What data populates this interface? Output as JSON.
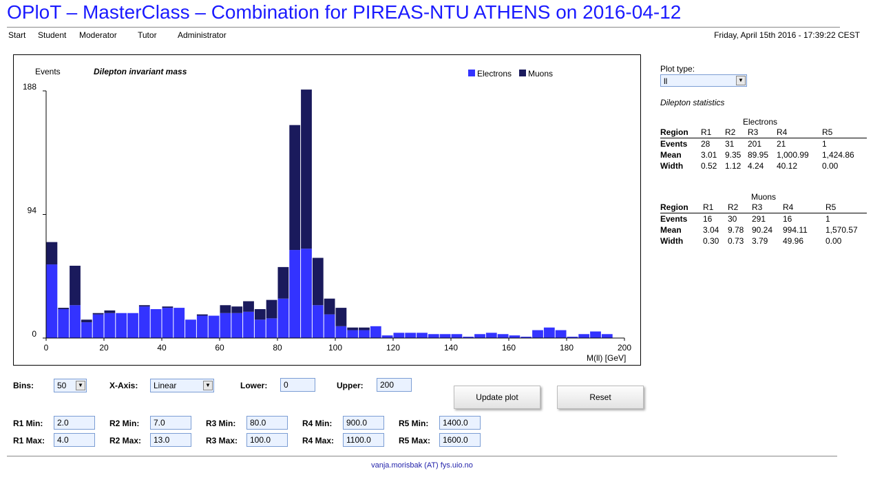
{
  "header": {
    "title": "OPloT – MasterClass – Combination for PIREAS-NTU ATHENS on 2016-04-12",
    "datetime": "Friday, April 15th 2016 - 17:39:22 CEST"
  },
  "nav": {
    "items": [
      "Start",
      "Student",
      "Moderator",
      "Tutor",
      "Administrator"
    ]
  },
  "plot": {
    "ylabel": "Events",
    "chart_title": "Dilepton invariant mass",
    "xlabel": "M(ll) [GeV]",
    "legend": [
      "Electrons",
      "Muons"
    ]
  },
  "chart_data": {
    "type": "bar",
    "stacked": true,
    "title": "Dilepton invariant mass",
    "xlabel": "M(ll) [GeV]",
    "ylabel": "Events",
    "xlim": [
      0,
      200
    ],
    "ylim": [
      0,
      188
    ],
    "xticks": [
      0,
      20,
      40,
      60,
      80,
      100,
      120,
      140,
      160,
      180,
      200
    ],
    "yticks": [
      0,
      94,
      188
    ],
    "bin_width": 4,
    "x": [
      2,
      6,
      10,
      14,
      18,
      22,
      26,
      30,
      34,
      38,
      42,
      46,
      50,
      54,
      58,
      62,
      66,
      70,
      74,
      78,
      82,
      86,
      90,
      94,
      98,
      102,
      106,
      110,
      114,
      118,
      122,
      126,
      130,
      134,
      138,
      142,
      146,
      150,
      154,
      158,
      162,
      166,
      170,
      174,
      178,
      182,
      186,
      190,
      194,
      198
    ],
    "series": [
      {
        "name": "Electrons",
        "color": "#3333ff",
        "values": [
          56,
          22,
          25,
          12,
          18,
          19,
          19,
          19,
          24,
          22,
          23,
          23,
          14,
          17,
          17,
          19,
          19,
          20,
          14,
          15,
          30,
          67,
          68,
          25,
          18,
          9,
          6,
          6,
          9,
          2,
          4,
          4,
          4,
          3,
          3,
          3,
          1,
          3,
          4,
          3,
          2,
          1,
          6,
          8,
          6,
          1,
          3,
          5,
          3,
          0
        ]
      },
      {
        "name": "Muons",
        "color": "#1a1a5c",
        "values": [
          17,
          1,
          30,
          2,
          1,
          2,
          0,
          0,
          1,
          0,
          1,
          0,
          0,
          1,
          0,
          6,
          5,
          8,
          8,
          14,
          24,
          95,
          121,
          36,
          12,
          14,
          2,
          2,
          0,
          0,
          0,
          0,
          0,
          0,
          0,
          0,
          0,
          0,
          0,
          0,
          0,
          0,
          0,
          0,
          0,
          0,
          0,
          0,
          0,
          0
        ]
      }
    ]
  },
  "side": {
    "plot_type_label": "Plot type:",
    "plot_type_value": "ll",
    "stats_title": "Dilepton statistics",
    "electrons": {
      "title": "Electrons",
      "headers": [
        "Region",
        "R1",
        "R2",
        "R3",
        "R4",
        "R5"
      ],
      "rows": [
        [
          "Events",
          "28",
          "31",
          "201",
          "21",
          "1"
        ],
        [
          "Mean",
          "3.01",
          "9.35",
          "89.95",
          "1,000.99",
          "1,424.86"
        ],
        [
          "Width",
          "0.52",
          "1.12",
          "4.24",
          "40.12",
          "0.00"
        ]
      ]
    },
    "muons": {
      "title": "Muons",
      "headers": [
        "Region",
        "R1",
        "R2",
        "R3",
        "R4",
        "R5"
      ],
      "rows": [
        [
          "Events",
          "16",
          "30",
          "291",
          "16",
          "1"
        ],
        [
          "Mean",
          "3.04",
          "9.78",
          "90.24",
          "994.11",
          "1,570.57"
        ],
        [
          "Width",
          "0.30",
          "0.73",
          "3.79",
          "49.96",
          "0.00"
        ]
      ]
    }
  },
  "controls": {
    "bins_label": "Bins:",
    "bins_value": "50",
    "xaxis_label": "X-Axis:",
    "xaxis_value": "Linear",
    "lower_label": "Lower:",
    "lower_value": "0",
    "upper_label": "Upper:",
    "upper_value": "200",
    "update_label": "Update plot",
    "reset_label": "Reset",
    "regions": [
      {
        "min_label": "R1 Min:",
        "min": "2.0",
        "max_label": "R1 Max:",
        "max": "4.0"
      },
      {
        "min_label": "R2 Min:",
        "min": "7.0",
        "max_label": "R2 Max:",
        "max": "13.0"
      },
      {
        "min_label": "R3 Min:",
        "min": "80.0",
        "max_label": "R3 Max:",
        "max": "100.0"
      },
      {
        "min_label": "R4 Min:",
        "min": "900.0",
        "max_label": "R4 Max:",
        "max": "1100.0"
      },
      {
        "min_label": "R5 Min:",
        "min": "1400.0",
        "max_label": "R5 Max:",
        "max": "1600.0"
      }
    ]
  },
  "footer": {
    "email": "vanja.morisbak (AT) fys.uio.no"
  }
}
